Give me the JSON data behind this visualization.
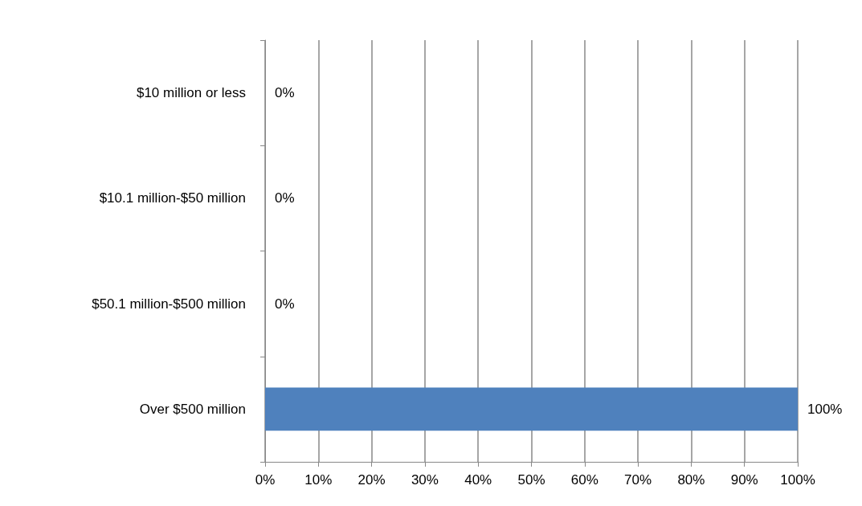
{
  "chart_data": {
    "type": "bar",
    "orientation": "horizontal",
    "categories": [
      "$10 million or less",
      "$10.1 million-$50 million",
      "$50.1 million-$500 million",
      "Over $500 million"
    ],
    "values": [
      0,
      0,
      0,
      100
    ],
    "color": "#4f81bd",
    "value_labels": [
      "0%",
      "0%",
      "0%",
      "100%"
    ],
    "xlim": [
      0,
      100
    ],
    "xticks": [
      {
        "value": 0,
        "label": "0%"
      },
      {
        "value": 10,
        "label": "10%"
      },
      {
        "value": 20,
        "label": "20%"
      },
      {
        "value": 30,
        "label": "30%"
      },
      {
        "value": 40,
        "label": "40%"
      },
      {
        "value": 50,
        "label": "50%"
      },
      {
        "value": 60,
        "label": "60%"
      },
      {
        "value": 70,
        "label": "70%"
      },
      {
        "value": 80,
        "label": "80%"
      },
      {
        "value": 90,
        "label": "90%"
      },
      {
        "value": 100,
        "label": "100%"
      }
    ],
    "grid": "x"
  }
}
